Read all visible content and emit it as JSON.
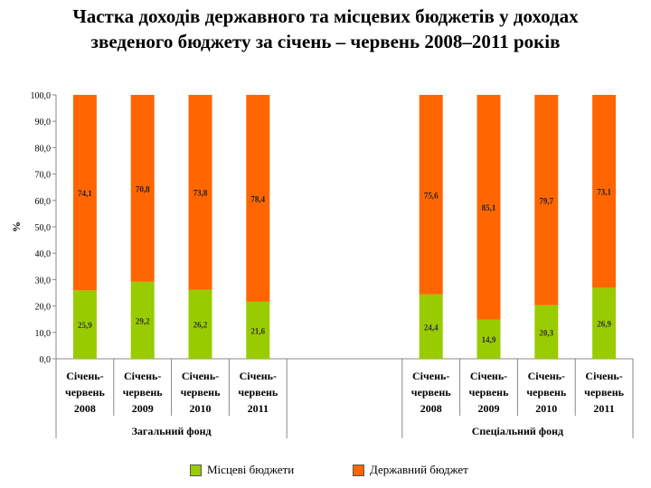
{
  "title_line1": "Частка доходів державного та місцевих бюджетів у доходах",
  "title_line2": "зведеного бюджету за січень – червень 2008–2011 років",
  "colors": {
    "local": "#99cc00",
    "state": "#ff6600"
  },
  "chart_data": {
    "type": "bar",
    "stacked": true,
    "ylabel": "%",
    "ylim": [
      0,
      100
    ],
    "yticks": [
      "0,0",
      "10,0",
      "20,0",
      "30,0",
      "40,0",
      "50,0",
      "60,0",
      "70,0",
      "80,0",
      "90,0",
      "100,0"
    ],
    "groups": [
      {
        "name": "Загальний фонд",
        "categories": [
          {
            "line1": "Січень-",
            "line2": "червень",
            "year": "2008"
          },
          {
            "line1": "Січень-",
            "line2": "червень",
            "year": "2009"
          },
          {
            "line1": "Січень-",
            "line2": "червень",
            "year": "2010"
          },
          {
            "line1": "Січень-",
            "line2": "червень",
            "year": "2011"
          }
        ],
        "series": [
          {
            "name": "Місцеві бюджети",
            "values": [
              25.9,
              29.2,
              26.2,
              21.6
            ],
            "labels": [
              "25,9",
              "29,2",
              "26,2",
              "21,6"
            ]
          },
          {
            "name": "Державний бюджет",
            "values": [
              74.1,
              70.8,
              73.8,
              78.4
            ],
            "labels": [
              "74,1",
              "70,8",
              "73,8",
              "78,4"
            ]
          }
        ]
      },
      {
        "name": "Спеціальний фонд",
        "categories": [
          {
            "line1": "Січень-",
            "line2": "червень",
            "year": "2008"
          },
          {
            "line1": "Січень-",
            "line2": "червень",
            "year": "2009"
          },
          {
            "line1": "Січень-",
            "line2": "червень",
            "year": "2010"
          },
          {
            "line1": "Січень-",
            "line2": "червень",
            "year": "2011"
          }
        ],
        "series": [
          {
            "name": "Місцеві бюджети",
            "values": [
              24.4,
              14.9,
              20.3,
              26.9
            ],
            "labels": [
              "24,4",
              "14,9",
              "20,3",
              "26,9"
            ]
          },
          {
            "name": "Державний бюджет",
            "values": [
              75.6,
              85.1,
              79.7,
              73.1
            ],
            "labels": [
              "75,6",
              "85,1",
              "79,7",
              "73,1"
            ]
          }
        ]
      }
    ],
    "legend": {
      "position": "bottom",
      "items": [
        "Місцеві бюджети",
        "Державний бюджет"
      ]
    }
  }
}
